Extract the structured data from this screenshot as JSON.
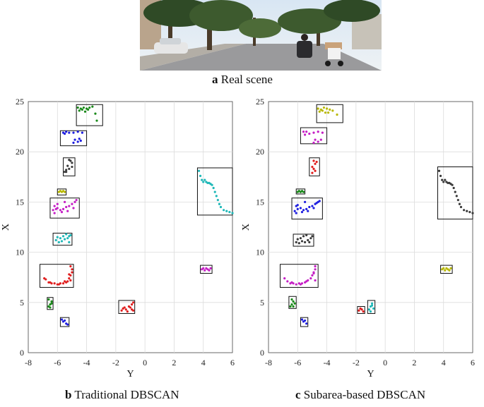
{
  "captions": {
    "a": {
      "letter": "a",
      "text": "Real scene"
    },
    "b": {
      "letter": "b",
      "text": "Traditional DBSCAN"
    },
    "c": {
      "letter": "c",
      "text": "Subarea-based DBSCAN"
    }
  },
  "colors": {
    "green": "#1a8a1a",
    "blue": "#1f1fe0",
    "dark": "#3a3a3a",
    "yellow": "#b8b800",
    "magenta": "#c51fc5",
    "cyan": "#1fb8b8",
    "red": "#e01f1f"
  },
  "chart_data": [
    {
      "type": "scatter",
      "xlabel": "Y",
      "ylabel": "X",
      "xlim": [
        -8,
        6
      ],
      "ylim": [
        0,
        25
      ],
      "xticks": [
        "-8",
        "-6",
        "-4",
        "-2",
        "0",
        "2",
        "4",
        "6"
      ],
      "yticks": [
        "0",
        "5",
        "10",
        "15",
        "20",
        "25"
      ],
      "grid": true,
      "boxes": [
        {
          "name": "box-1",
          "x": [
            -4.7,
            -2.9
          ],
          "y": [
            22.6,
            24.7
          ]
        },
        {
          "name": "box-2",
          "x": [
            -5.8,
            -4.0
          ],
          "y": [
            20.6,
            22.1
          ]
        },
        {
          "name": "box-3",
          "x": [
            -5.6,
            -4.8
          ],
          "y": [
            17.6,
            19.4
          ]
        },
        {
          "name": "box-4",
          "x": [
            -6.0,
            -5.4
          ],
          "y": [
            15.7,
            16.3
          ]
        },
        {
          "name": "box-5",
          "x": [
            -6.5,
            -4.5
          ],
          "y": [
            13.4,
            15.4
          ]
        },
        {
          "name": "box-6",
          "x": [
            -6.3,
            -5.0
          ],
          "y": [
            10.7,
            11.9
          ]
        },
        {
          "name": "box-7",
          "x": [
            -7.2,
            -4.9
          ],
          "y": [
            6.5,
            8.8
          ]
        },
        {
          "name": "box-8",
          "x": [
            -6.7,
            -6.3
          ],
          "y": [
            4.3,
            5.5
          ]
        },
        {
          "name": "box-9",
          "x": [
            -5.8,
            -5.2
          ],
          "y": [
            2.6,
            3.5
          ]
        },
        {
          "name": "box-10",
          "x": [
            -1.8,
            -0.7
          ],
          "y": [
            3.9,
            5.2
          ]
        },
        {
          "name": "box-11",
          "x": [
            3.6,
            6.0
          ],
          "y": [
            13.7,
            18.4
          ]
        },
        {
          "name": "box-12",
          "x": [
            3.8,
            4.6
          ],
          "y": [
            7.9,
            8.7
          ]
        }
      ],
      "series": [
        {
          "color": "#1a8a1a",
          "x": [
            -4.6,
            -4.4,
            -4.2,
            -4.0,
            -3.8,
            -3.6,
            -4.5,
            -4.3,
            -3.9,
            -3.4,
            -3.3,
            -4.1
          ],
          "y": [
            24.4,
            24.3,
            24.4,
            24.3,
            24.4,
            24.5,
            24.1,
            24.2,
            24.2,
            23.8,
            23.1,
            24.0
          ]
        },
        {
          "color": "#1f1fe0",
          "x": [
            -5.6,
            -5.4,
            -5.2,
            -4.9,
            -4.6,
            -4.3,
            -4.8,
            -4.6,
            -4.4,
            -4.9,
            -5.5,
            -4.5
          ],
          "y": [
            21.9,
            22.0,
            21.9,
            21.9,
            22.0,
            21.9,
            21.2,
            21.0,
            21.1,
            20.9,
            21.8,
            21.3
          ]
        },
        {
          "color": "#3a3a3a",
          "x": [
            -5.4,
            -5.2,
            -5.0,
            -5.1,
            -5.3,
            -5.5,
            -5.0,
            -5.2,
            -5.4
          ],
          "y": [
            18.0,
            18.3,
            18.9,
            19.1,
            18.6,
            18.0,
            18.5,
            19.2,
            18.2
          ]
        },
        {
          "color": "#b8b800",
          "x": [
            -5.9,
            -5.8,
            -5.7,
            -5.6,
            -5.5
          ],
          "y": [
            16.0,
            16.1,
            16.0,
            16.1,
            16.0
          ]
        },
        {
          "color": "#c51fc5",
          "x": [
            -6.3,
            -6.2,
            -6.1,
            -6.0,
            -5.8,
            -5.6,
            -5.4,
            -5.2,
            -5.0,
            -4.8,
            -4.7,
            -6.2,
            -6.0,
            -5.7,
            -5.3,
            -4.9,
            -5.5
          ],
          "y": [
            14.2,
            13.9,
            14.3,
            14.4,
            14.2,
            14.3,
            14.5,
            14.6,
            14.8,
            15.0,
            15.2,
            14.6,
            14.8,
            14.0,
            14.1,
            14.4,
            15.0
          ]
        },
        {
          "color": "#1fb8b8",
          "x": [
            -6.1,
            -5.9,
            -5.7,
            -5.5,
            -5.3,
            -5.2,
            -5.1,
            -6.0,
            -5.8,
            -5.6,
            -5.4,
            -5.2
          ],
          "y": [
            11.2,
            11.0,
            11.1,
            11.3,
            11.4,
            11.6,
            11.7,
            11.5,
            11.4,
            11.6,
            11.8,
            11.0
          ]
        },
        {
          "color": "#e01f1f",
          "x": [
            -6.8,
            -6.6,
            -6.4,
            -6.2,
            -6.0,
            -5.8,
            -5.6,
            -5.4,
            -5.3,
            -5.2,
            -5.1,
            -5.0,
            -5.0,
            -5.1,
            -5.2,
            -5.1,
            -6.9,
            -6.5,
            -5.9,
            -5.5
          ],
          "y": [
            7.3,
            7.0,
            6.9,
            6.9,
            6.8,
            6.9,
            6.9,
            7.0,
            7.1,
            7.4,
            7.7,
            8.0,
            8.3,
            8.6,
            7.8,
            7.2,
            7.4,
            7.0,
            6.8,
            7.1
          ]
        },
        {
          "color": "#1a8a1a",
          "x": [
            -6.6,
            -6.5,
            -6.4,
            -6.6,
            -6.5,
            -6.4
          ],
          "y": [
            4.6,
            4.8,
            5.1,
            5.3,
            4.5,
            4.9
          ]
        },
        {
          "color": "#1f1fe0",
          "x": [
            -5.7,
            -5.6,
            -5.5,
            -5.4,
            -5.3
          ],
          "y": [
            3.3,
            3.1,
            3.2,
            2.9,
            2.8
          ]
        },
        {
          "color": "#e01f1f",
          "x": [
            -1.6,
            -1.5,
            -1.3,
            -1.2,
            -1.0,
            -0.9,
            -0.8,
            -1.1,
            -0.9,
            -1.4,
            -0.8
          ],
          "y": [
            4.2,
            4.4,
            4.3,
            4.1,
            4.5,
            4.8,
            5.0,
            4.6,
            4.3,
            4.5,
            4.2
          ]
        },
        {
          "color": "#1fb8b8",
          "x": [
            3.7,
            3.8,
            3.9,
            4.0,
            4.2,
            4.4,
            4.5,
            4.6,
            4.7,
            4.8,
            4.9,
            5.0,
            5.1,
            5.2,
            5.4,
            5.6,
            5.8,
            6.0,
            4.1,
            4.3
          ],
          "y": [
            18.1,
            17.6,
            17.2,
            17.0,
            17.0,
            16.9,
            16.8,
            16.7,
            16.4,
            16.0,
            15.6,
            15.2,
            14.8,
            14.5,
            14.2,
            14.1,
            14.0,
            13.9,
            17.2,
            16.9
          ]
        },
        {
          "color": "#c51fc5",
          "x": [
            3.9,
            4.0,
            4.1,
            4.2,
            4.3,
            4.4,
            4.5
          ],
          "y": [
            8.3,
            8.4,
            8.2,
            8.4,
            8.3,
            8.2,
            8.4
          ]
        }
      ]
    },
    {
      "type": "scatter",
      "xlabel": "Y",
      "ylabel": "X",
      "xlim": [
        -8,
        6
      ],
      "ylim": [
        0,
        25
      ],
      "xticks": [
        "-8",
        "-6",
        "-4",
        "-2",
        "0",
        "2",
        "4",
        "6"
      ],
      "yticks": [
        "0",
        "5",
        "10",
        "15",
        "20",
        "25"
      ],
      "grid": true,
      "boxes": [
        {
          "name": "box-1",
          "x": [
            -4.7,
            -2.9
          ],
          "y": [
            22.9,
            24.7
          ]
        },
        {
          "name": "box-2",
          "x": [
            -5.8,
            -4.0
          ],
          "y": [
            20.8,
            22.4
          ]
        },
        {
          "name": "box-3",
          "x": [
            -5.2,
            -4.5
          ],
          "y": [
            17.6,
            19.4
          ]
        },
        {
          "name": "box-4",
          "x": [
            -6.1,
            -5.5
          ],
          "y": [
            15.8,
            16.3
          ]
        },
        {
          "name": "box-5",
          "x": [
            -6.4,
            -4.3
          ],
          "y": [
            13.3,
            15.4
          ]
        },
        {
          "name": "box-6",
          "x": [
            -6.3,
            -4.9
          ],
          "y": [
            10.6,
            11.8
          ]
        },
        {
          "name": "box-7",
          "x": [
            -7.2,
            -4.6
          ],
          "y": [
            6.5,
            8.8
          ]
        },
        {
          "name": "box-8",
          "x": [
            -6.6,
            -6.1
          ],
          "y": [
            4.4,
            5.6
          ]
        },
        {
          "name": "box-9",
          "x": [
            -5.8,
            -5.3
          ],
          "y": [
            2.6,
            3.5
          ]
        },
        {
          "name": "box-10",
          "x": [
            -1.9,
            -1.4
          ],
          "y": [
            3.9,
            4.6
          ]
        },
        {
          "name": "box-11",
          "x": [
            -1.2,
            -0.7
          ],
          "y": [
            3.9,
            5.2
          ]
        },
        {
          "name": "box-12",
          "x": [
            3.6,
            6.0
          ],
          "y": [
            13.3,
            18.5
          ]
        },
        {
          "name": "box-13",
          "x": [
            3.8,
            4.6
          ],
          "y": [
            7.9,
            8.7
          ]
        }
      ],
      "series": [
        {
          "color": "#b8b800",
          "x": [
            -4.6,
            -4.4,
            -4.2,
            -4.0,
            -3.8,
            -3.6,
            -4.5,
            -4.3,
            -3.9,
            -3.3,
            -4.1
          ],
          "y": [
            24.3,
            24.2,
            24.4,
            24.3,
            24.2,
            24.1,
            24.0,
            24.1,
            23.9,
            23.7,
            23.9
          ]
        },
        {
          "color": "#c51fc5",
          "x": [
            -5.6,
            -5.4,
            -5.2,
            -4.9,
            -4.6,
            -4.3,
            -4.8,
            -4.6,
            -4.4,
            -4.9,
            -5.5
          ],
          "y": [
            22.0,
            22.0,
            21.8,
            21.9,
            22.0,
            21.9,
            21.2,
            21.0,
            21.2,
            20.9,
            21.7
          ]
        },
        {
          "color": "#e01f1f",
          "x": [
            -5.0,
            -4.9,
            -4.8,
            -4.9,
            -5.0,
            -4.8,
            -4.7
          ],
          "y": [
            17.9,
            18.3,
            18.8,
            19.1,
            18.5,
            18.1,
            19.0
          ]
        },
        {
          "color": "#1a8a1a",
          "x": [
            -6.0,
            -5.9,
            -5.8,
            -5.7,
            -5.6
          ],
          "y": [
            16.0,
            16.1,
            16.0,
            16.1,
            16.0
          ]
        },
        {
          "color": "#1f1fe0",
          "x": [
            -6.2,
            -6.1,
            -6.0,
            -5.8,
            -5.6,
            -5.4,
            -5.2,
            -5.0,
            -4.8,
            -4.6,
            -4.5,
            -6.0,
            -5.7,
            -5.3,
            -4.9,
            -5.5,
            -6.1,
            -4.7
          ],
          "y": [
            14.1,
            13.9,
            14.3,
            14.4,
            14.2,
            14.3,
            14.5,
            14.6,
            14.8,
            15.0,
            15.1,
            14.7,
            14.0,
            14.1,
            14.4,
            15.0,
            14.6,
            14.9
          ]
        },
        {
          "color": "#3a3a3a",
          "x": [
            -6.1,
            -5.9,
            -5.7,
            -5.5,
            -5.3,
            -5.1,
            -5.0,
            -6.0,
            -5.8,
            -5.6,
            -5.4,
            -5.2
          ],
          "y": [
            11.0,
            10.9,
            11.1,
            11.0,
            11.2,
            11.4,
            11.6,
            11.3,
            11.4,
            11.6,
            11.7,
            11.0
          ]
        },
        {
          "color": "#c51fc5",
          "x": [
            -6.9,
            -6.7,
            -6.5,
            -6.3,
            -6.1,
            -5.9,
            -5.7,
            -5.5,
            -5.3,
            -5.1,
            -5.0,
            -4.9,
            -4.8,
            -4.8,
            -4.9,
            -4.8,
            -6.4,
            -5.8,
            -5.4
          ],
          "y": [
            7.4,
            7.1,
            6.9,
            6.9,
            6.8,
            6.9,
            6.9,
            7.0,
            7.2,
            7.4,
            7.7,
            8.0,
            8.3,
            8.6,
            7.9,
            7.2,
            7.0,
            6.8,
            7.1
          ]
        },
        {
          "color": "#1a8a1a",
          "x": [
            -6.5,
            -6.4,
            -6.3,
            -6.4,
            -6.3,
            -6.2
          ],
          "y": [
            4.6,
            4.8,
            5.1,
            5.3,
            4.6,
            4.9
          ]
        },
        {
          "color": "#1f1fe0",
          "x": [
            -5.7,
            -5.6,
            -5.5,
            -5.4
          ],
          "y": [
            3.3,
            3.1,
            3.2,
            2.9
          ]
        },
        {
          "color": "#e01f1f",
          "x": [
            -1.8,
            -1.7,
            -1.6,
            -1.5
          ],
          "y": [
            4.2,
            4.4,
            4.3,
            4.1
          ]
        },
        {
          "color": "#1fb8b8",
          "x": [
            -1.1,
            -1.0,
            -0.9,
            -0.8,
            -1.0,
            -0.9
          ],
          "y": [
            4.3,
            4.6,
            4.9,
            4.4,
            4.1,
            4.7
          ]
        },
        {
          "color": "#3a3a3a",
          "x": [
            3.7,
            3.8,
            3.9,
            4.0,
            4.2,
            4.4,
            4.5,
            4.6,
            4.7,
            4.8,
            4.9,
            5.0,
            5.1,
            5.2,
            5.4,
            5.6,
            5.8,
            6.0,
            4.1,
            4.3
          ],
          "y": [
            18.1,
            17.6,
            17.2,
            17.0,
            17.0,
            16.9,
            16.8,
            16.7,
            16.4,
            16.0,
            15.6,
            15.2,
            14.8,
            14.5,
            14.2,
            14.1,
            14.0,
            13.9,
            17.2,
            16.9
          ]
        },
        {
          "color": "#b8b800",
          "x": [
            3.9,
            4.0,
            4.1,
            4.2,
            4.3,
            4.4,
            4.5
          ],
          "y": [
            8.3,
            8.4,
            8.2,
            8.4,
            8.3,
            8.2,
            8.4
          ]
        }
      ]
    }
  ]
}
